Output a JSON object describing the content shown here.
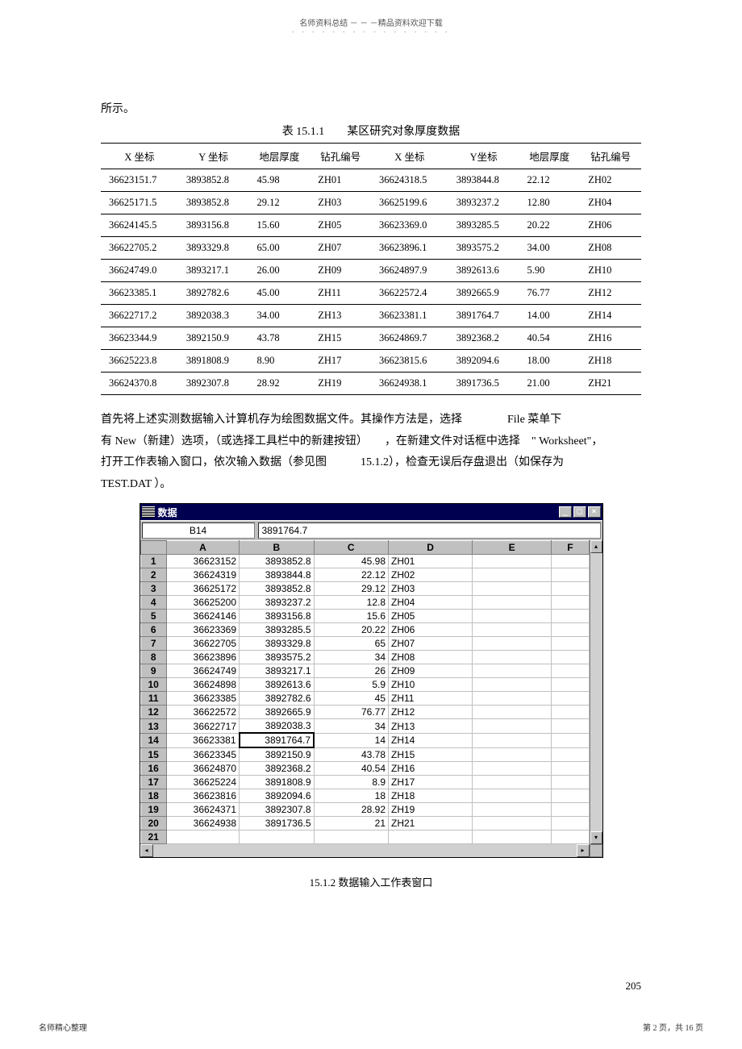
{
  "header": {
    "title": "名师资料总结 － － －精品资料欢迎下载",
    "dashes": "- - - - - - - - - - - - - - - -"
  },
  "para1": "所示。",
  "tableTitle": "表 15.1.1　　某区研究对象厚度数据",
  "columns": [
    "X 坐标",
    "Y 坐标",
    "地层厚度",
    "钻孔编号",
    "X 坐标",
    "Y坐标",
    "地层厚度",
    "钻孔编号"
  ],
  "rows": [
    [
      "36623151.7",
      "3893852.8",
      "45.98",
      "ZH01",
      "36624318.5",
      "3893844.8",
      "22.12",
      "ZH02"
    ],
    [
      "36625171.5",
      "3893852.8",
      "29.12",
      "ZH03",
      "36625199.6",
      "3893237.2",
      "12.80",
      "ZH04"
    ],
    [
      "36624145.5",
      "3893156.8",
      "15.60",
      "ZH05",
      "36623369.0",
      "3893285.5",
      "20.22",
      "ZH06"
    ],
    [
      "36622705.2",
      "3893329.8",
      "65.00",
      "ZH07",
      "36623896.1",
      "3893575.2",
      "34.00",
      "ZH08"
    ],
    [
      "36624749.0",
      "3893217.1",
      "26.00",
      "ZH09",
      "36624897.9",
      "3892613.6",
      "5.90",
      "ZH10"
    ],
    [
      "36623385.1",
      "3892782.6",
      "45.00",
      "ZH11",
      "36622572.4",
      "3892665.9",
      "76.77",
      "ZH12"
    ],
    [
      "36622717.2",
      "3892038.3",
      "34.00",
      "ZH13",
      "36623381.1",
      "3891764.7",
      "14.00",
      "ZH14"
    ],
    [
      "36623344.9",
      "3892150.9",
      "43.78",
      "ZH15",
      "36624869.7",
      "3892368.2",
      "40.54",
      "ZH16"
    ],
    [
      "36625223.8",
      "3891808.9",
      "8.90",
      "ZH17",
      "36623815.6",
      "3892094.6",
      "18.00",
      "ZH18"
    ],
    [
      "36624370.8",
      "3892307.8",
      "28.92",
      "ZH19",
      "36624938.1",
      "3891736.5",
      "21.00",
      "ZH21"
    ]
  ],
  "bodyText": {
    "l1a": "首先将上述实测数据输入计算机存为绘图数据文件。其操作方法是，选择",
    "l1b": "File 菜单下",
    "l2a": "有 New（新建）选项，（或选择工具栏中的新建按钮）",
    "l2b": "，在新建文件对话框中选择",
    "l2c": "\" Worksheet\"，",
    "l3a": "打开工作表输入窗口，依次输入数据（参见图",
    "l3b": "15.1.2），检查无误后存盘退出（如保存为",
    "l4": "TEST.DAT ）。"
  },
  "window": {
    "title": "数据",
    "cellRef": "B14",
    "cellVal": "3891764.7",
    "cols": [
      "A",
      "B",
      "C",
      "D",
      "E",
      "F"
    ],
    "rows": [
      [
        "36623152",
        "3893852.8",
        "45.98",
        "ZH01",
        "",
        ""
      ],
      [
        "36624319",
        "3893844.8",
        "22.12",
        "ZH02",
        "",
        ""
      ],
      [
        "36625172",
        "3893852.8",
        "29.12",
        "ZH03",
        "",
        ""
      ],
      [
        "36625200",
        "3893237.2",
        "12.8",
        "ZH04",
        "",
        ""
      ],
      [
        "36624146",
        "3893156.8",
        "15.6",
        "ZH05",
        "",
        ""
      ],
      [
        "36623369",
        "3893285.5",
        "20.22",
        "ZH06",
        "",
        ""
      ],
      [
        "36622705",
        "3893329.8",
        "65",
        "ZH07",
        "",
        ""
      ],
      [
        "36623896",
        "3893575.2",
        "34",
        "ZH08",
        "",
        ""
      ],
      [
        "36624749",
        "3893217.1",
        "26",
        "ZH09",
        "",
        ""
      ],
      [
        "36624898",
        "3892613.6",
        "5.9",
        "ZH10",
        "",
        ""
      ],
      [
        "36623385",
        "3892782.6",
        "45",
        "ZH11",
        "",
        ""
      ],
      [
        "36622572",
        "3892665.9",
        "76.77",
        "ZH12",
        "",
        ""
      ],
      [
        "36622717",
        "3892038.3",
        "34",
        "ZH13",
        "",
        ""
      ],
      [
        "36623381",
        "3891764.7",
        "14",
        "ZH14",
        "",
        ""
      ],
      [
        "36623345",
        "3892150.9",
        "43.78",
        "ZH15",
        "",
        ""
      ],
      [
        "36624870",
        "3892368.2",
        "40.54",
        "ZH16",
        "",
        ""
      ],
      [
        "36625224",
        "3891808.9",
        "8.9",
        "ZH17",
        "",
        ""
      ],
      [
        "36623816",
        "3892094.6",
        "18",
        "ZH18",
        "",
        ""
      ],
      [
        "36624371",
        "3892307.8",
        "28.92",
        "ZH19",
        "",
        ""
      ],
      [
        "36624938",
        "3891736.5",
        "21",
        "ZH21",
        "",
        ""
      ],
      [
        "",
        "",
        "",
        "",
        "",
        ""
      ]
    ],
    "selectedRow": 14,
    "selectedCol": "B"
  },
  "figureCaption": "15.1.2 数据输入工作表窗口",
  "pageNumRight": "205",
  "footer": {
    "left": "名师精心整理",
    "right": "第 2 页，共 16 页"
  }
}
